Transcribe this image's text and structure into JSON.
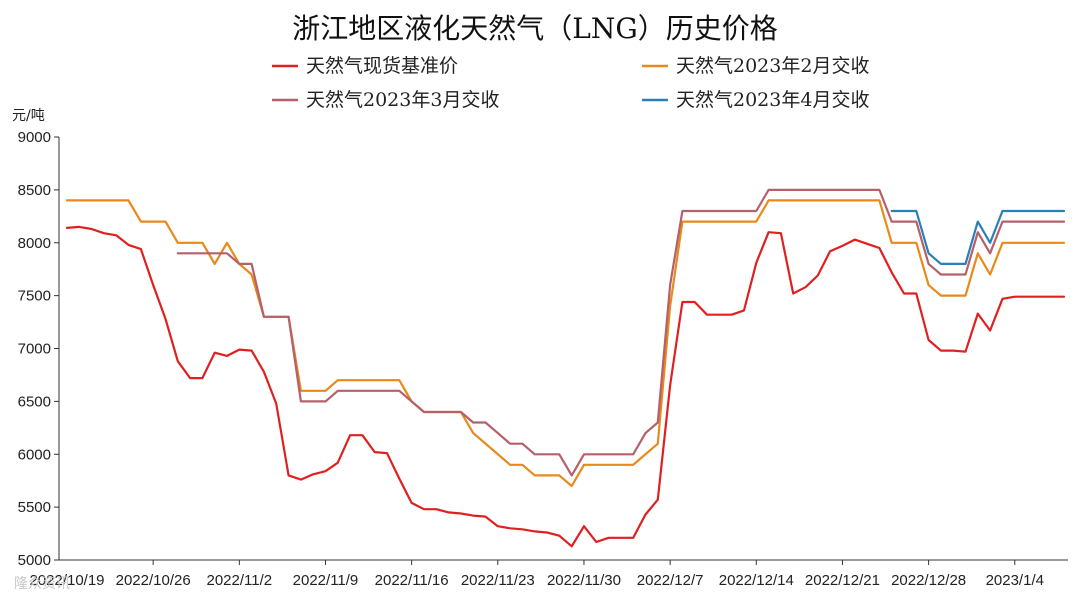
{
  "chart_data": {
    "type": "line",
    "title": "浙江地区液化天然气（LNG）历史价格",
    "ylabel": "元/吨",
    "xlabel": "",
    "ylim": [
      5000,
      9000
    ],
    "yticks": [
      5000,
      5500,
      6000,
      6500,
      7000,
      7500,
      8000,
      8500,
      9000
    ],
    "xticks": [
      "2022/10/19",
      "2022/10/26",
      "2022/11/2",
      "2022/11/9",
      "2022/11/16",
      "2022/11/23",
      "2022/11/30",
      "2022/12/7",
      "2022/12/14",
      "2022/12/21",
      "2022/12/28",
      "2023/1/4"
    ],
    "legend_position": "top",
    "grid": false,
    "watermark": "隆众资讯",
    "series": [
      {
        "name": "天然气现货基准价",
        "color": "#e02020",
        "points": [
          [
            "2022/10/19",
            8140
          ],
          [
            "2022/10/20",
            8150
          ],
          [
            "2022/10/21",
            8130
          ],
          [
            "2022/10/22",
            8090
          ],
          [
            "2022/10/23",
            8070
          ],
          [
            "2022/10/24",
            7980
          ],
          [
            "2022/10/25",
            7940
          ],
          [
            "2022/10/26",
            7600
          ],
          [
            "2022/10/27",
            7280
          ],
          [
            "2022/10/28",
            6880
          ],
          [
            "2022/10/29",
            6720
          ],
          [
            "2022/10/30",
            6720
          ],
          [
            "2022/10/31",
            6960
          ],
          [
            "2022/11/1",
            6930
          ],
          [
            "2022/11/2",
            6990
          ],
          [
            "2022/11/3",
            6980
          ],
          [
            "2022/11/4",
            6780
          ],
          [
            "2022/11/5",
            6480
          ],
          [
            "2022/11/6",
            5800
          ],
          [
            "2022/11/7",
            5760
          ],
          [
            "2022/11/8",
            5810
          ],
          [
            "2022/11/9",
            5840
          ],
          [
            "2022/11/10",
            5920
          ],
          [
            "2022/11/11",
            6180
          ],
          [
            "2022/11/12",
            6180
          ],
          [
            "2022/11/13",
            6020
          ],
          [
            "2022/11/14",
            6010
          ],
          [
            "2022/11/15",
            5770
          ],
          [
            "2022/11/16",
            5540
          ],
          [
            "2022/11/17",
            5480
          ],
          [
            "2022/11/18",
            5480
          ],
          [
            "2022/11/19",
            5450
          ],
          [
            "2022/11/20",
            5440
          ],
          [
            "2022/11/21",
            5420
          ],
          [
            "2022/11/22",
            5410
          ],
          [
            "2022/11/23",
            5320
          ],
          [
            "2022/11/24",
            5300
          ],
          [
            "2022/11/25",
            5290
          ],
          [
            "2022/11/26",
            5270
          ],
          [
            "2022/11/27",
            5260
          ],
          [
            "2022/11/28",
            5230
          ],
          [
            "2022/11/29",
            5130
          ],
          [
            "2022/11/30",
            5320
          ],
          [
            "2022/12/1",
            5170
          ],
          [
            "2022/12/2",
            5210
          ],
          [
            "2022/12/3",
            5210
          ],
          [
            "2022/12/4",
            5210
          ],
          [
            "2022/12/5",
            5430
          ],
          [
            "2022/12/6",
            5570
          ],
          [
            "2022/12/7",
            6650
          ],
          [
            "2022/12/8",
            7440
          ],
          [
            "2022/12/9",
            7440
          ],
          [
            "2022/12/10",
            7320
          ],
          [
            "2022/12/11",
            7320
          ],
          [
            "2022/12/12",
            7320
          ],
          [
            "2022/12/13",
            7360
          ],
          [
            "2022/12/14",
            7810
          ],
          [
            "2022/12/15",
            8100
          ],
          [
            "2022/12/16",
            8090
          ],
          [
            "2022/12/17",
            7520
          ],
          [
            "2022/12/18",
            7580
          ],
          [
            "2022/12/19",
            7690
          ],
          [
            "2022/12/20",
            7920
          ],
          [
            "2022/12/21",
            7970
          ],
          [
            "2022/12/22",
            8030
          ],
          [
            "2022/12/23",
            7990
          ],
          [
            "2022/12/24",
            7950
          ],
          [
            "2022/12/25",
            7720
          ],
          [
            "2022/12/26",
            7520
          ],
          [
            "2022/12/27",
            7520
          ],
          [
            "2022/12/28",
            7080
          ],
          [
            "2022/12/29",
            6980
          ],
          [
            "2022/12/30",
            6980
          ],
          [
            "2022/12/31",
            6970
          ],
          [
            "2023/1/1",
            7330
          ],
          [
            "2023/1/2",
            7170
          ],
          [
            "2023/1/3",
            7470
          ],
          [
            "2023/1/4",
            7490
          ],
          [
            "2023/1/5",
            7490
          ],
          [
            "2023/1/6",
            7490
          ],
          [
            "2023/1/7",
            7490
          ],
          [
            "2023/1/8",
            7490
          ]
        ]
      },
      {
        "name": "天然气2023年2月交收",
        "color": "#e88a1a",
        "points": [
          [
            "2022/10/19",
            8400
          ],
          [
            "2022/10/21",
            8400
          ],
          [
            "2022/10/24",
            8400
          ],
          [
            "2022/10/25",
            8200
          ],
          [
            "2022/10/27",
            8200
          ],
          [
            "2022/10/28",
            8000
          ],
          [
            "2022/10/30",
            8000
          ],
          [
            "2022/10/31",
            7800
          ],
          [
            "2022/11/1",
            8000
          ],
          [
            "2022/11/2",
            7800
          ],
          [
            "2022/11/3",
            7700
          ],
          [
            "2022/11/4",
            7300
          ],
          [
            "2022/11/5",
            7300
          ],
          [
            "2022/11/6",
            7300
          ],
          [
            "2022/11/7",
            6600
          ],
          [
            "2022/11/8",
            6600
          ],
          [
            "2022/11/9",
            6600
          ],
          [
            "2022/11/10",
            6700
          ],
          [
            "2022/11/15",
            6700
          ],
          [
            "2022/11/16",
            6500
          ],
          [
            "2022/11/17",
            6400
          ],
          [
            "2022/11/20",
            6400
          ],
          [
            "2022/11/21",
            6200
          ],
          [
            "2022/11/24",
            5900
          ],
          [
            "2022/11/25",
            5900
          ],
          [
            "2022/11/26",
            5800
          ],
          [
            "2022/11/28",
            5800
          ],
          [
            "2022/11/29",
            5700
          ],
          [
            "2022/11/30",
            5900
          ],
          [
            "2022/12/4",
            5900
          ],
          [
            "2022/12/6",
            6100
          ],
          [
            "2022/12/7",
            7400
          ],
          [
            "2022/12/8",
            8200
          ],
          [
            "2022/12/14",
            8200
          ],
          [
            "2022/12/15",
            8400
          ],
          [
            "2022/12/22",
            8400
          ],
          [
            "2022/12/24",
            8400
          ],
          [
            "2022/12/25",
            8000
          ],
          [
            "2022/12/27",
            8000
          ],
          [
            "2022/12/28",
            7600
          ],
          [
            "2022/12/29",
            7500
          ],
          [
            "2022/12/31",
            7500
          ],
          [
            "2023/1/1",
            7900
          ],
          [
            "2023/1/2",
            7700
          ],
          [
            "2023/1/3",
            8000
          ],
          [
            "2023/1/8",
            8000
          ]
        ]
      },
      {
        "name": "天然气2023年3月交收",
        "color": "#b5606a",
        "points": [
          [
            "2022/10/28",
            7900
          ],
          [
            "2022/11/1",
            7900
          ],
          [
            "2022/11/2",
            7800
          ],
          [
            "2022/11/3",
            7800
          ],
          [
            "2022/11/4",
            7300
          ],
          [
            "2022/11/6",
            7300
          ],
          [
            "2022/11/7",
            6500
          ],
          [
            "2022/11/9",
            6500
          ],
          [
            "2022/11/10",
            6600
          ],
          [
            "2022/11/15",
            6600
          ],
          [
            "2022/11/16",
            6500
          ],
          [
            "2022/11/17",
            6400
          ],
          [
            "2022/11/20",
            6400
          ],
          [
            "2022/11/21",
            6300
          ],
          [
            "2022/11/22",
            6300
          ],
          [
            "2022/11/23",
            6200
          ],
          [
            "2022/11/24",
            6100
          ],
          [
            "2022/11/25",
            6100
          ],
          [
            "2022/11/26",
            6000
          ],
          [
            "2022/11/28",
            6000
          ],
          [
            "2022/11/29",
            5800
          ],
          [
            "2022/11/30",
            6000
          ],
          [
            "2022/12/4",
            6000
          ],
          [
            "2022/12/5",
            6200
          ],
          [
            "2022/12/6",
            6300
          ],
          [
            "2022/12/7",
            7600
          ],
          [
            "2022/12/8",
            8300
          ],
          [
            "2022/12/14",
            8300
          ],
          [
            "2022/12/15",
            8500
          ],
          [
            "2022/12/24",
            8500
          ],
          [
            "2022/12/25",
            8200
          ],
          [
            "2022/12/27",
            8200
          ],
          [
            "2022/12/28",
            7800
          ],
          [
            "2022/12/29",
            7700
          ],
          [
            "2022/12/31",
            7700
          ],
          [
            "2023/1/1",
            8100
          ],
          [
            "2023/1/2",
            7900
          ],
          [
            "2023/1/3",
            8200
          ],
          [
            "2023/1/8",
            8200
          ]
        ]
      },
      {
        "name": "天然气2023年4月交收",
        "color": "#2a7fb8",
        "points": [
          [
            "2022/12/25",
            8300
          ],
          [
            "2022/12/27",
            8300
          ],
          [
            "2022/12/28",
            7900
          ],
          [
            "2022/12/29",
            7800
          ],
          [
            "2022/12/31",
            7800
          ],
          [
            "2023/1/1",
            8200
          ],
          [
            "2023/1/2",
            8000
          ],
          [
            "2023/1/3",
            8300
          ],
          [
            "2023/1/8",
            8300
          ]
        ]
      }
    ]
  }
}
